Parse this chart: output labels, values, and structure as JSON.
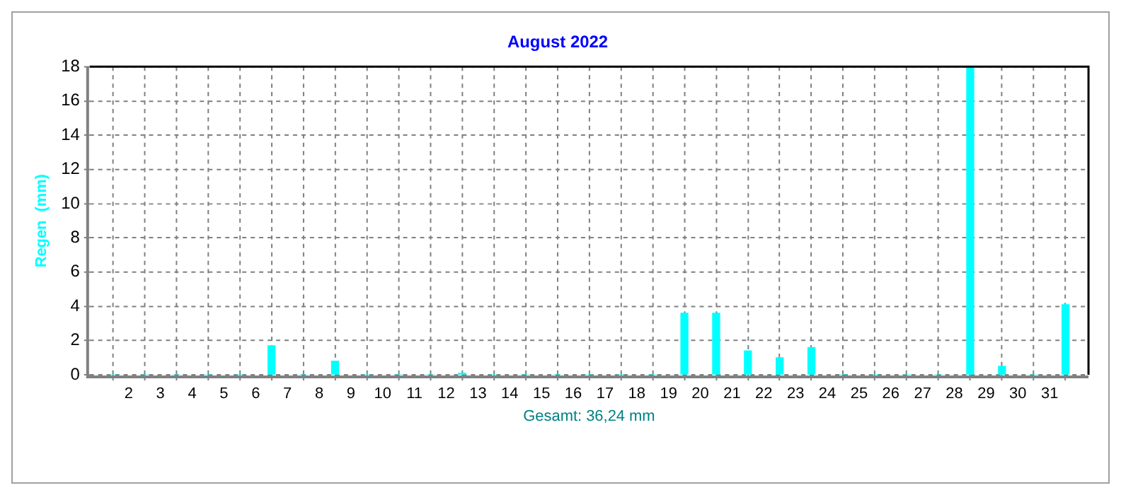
{
  "chart_data": {
    "type": "bar",
    "title": "August 2022",
    "xlabel": "Gesamt: 36,24 mm",
    "ylabel": "Regen  (mm)",
    "x": [
      1.5,
      2.5,
      3.5,
      4.5,
      5.5,
      6.5,
      7.5,
      8.5,
      9.5,
      10.5,
      11.5,
      12.5,
      13.5,
      14.5,
      15.5,
      16.5,
      17.5,
      18.5,
      19.5,
      20.5,
      21.5,
      22.5,
      23.5,
      24.5,
      25.5,
      26.5,
      27.5,
      28.5,
      29.5,
      30.5,
      31.5
    ],
    "values": [
      0,
      0,
      0,
      0,
      0,
      1.7,
      0,
      0.8,
      0,
      0,
      0,
      0.1,
      0,
      0,
      0,
      0,
      0,
      0,
      3.6,
      3.6,
      1.4,
      1.0,
      1.6,
      0,
      0,
      0,
      0,
      18,
      0.5,
      0,
      4.1
    ],
    "color": "#00ffff",
    "xlim": [
      1.3,
      31.7
    ],
    "xticks": [
      2,
      3,
      4,
      5,
      6,
      7,
      8,
      9,
      10,
      11,
      12,
      13,
      14,
      15,
      16,
      17,
      18,
      19,
      20,
      21,
      22,
      23,
      24,
      25,
      26,
      27,
      28,
      29,
      30,
      31
    ],
    "ylim": [
      0,
      18
    ],
    "yticks": [
      0,
      2,
      4,
      6,
      8,
      10,
      12,
      14,
      16,
      18
    ],
    "grid": true,
    "legend": false
  }
}
